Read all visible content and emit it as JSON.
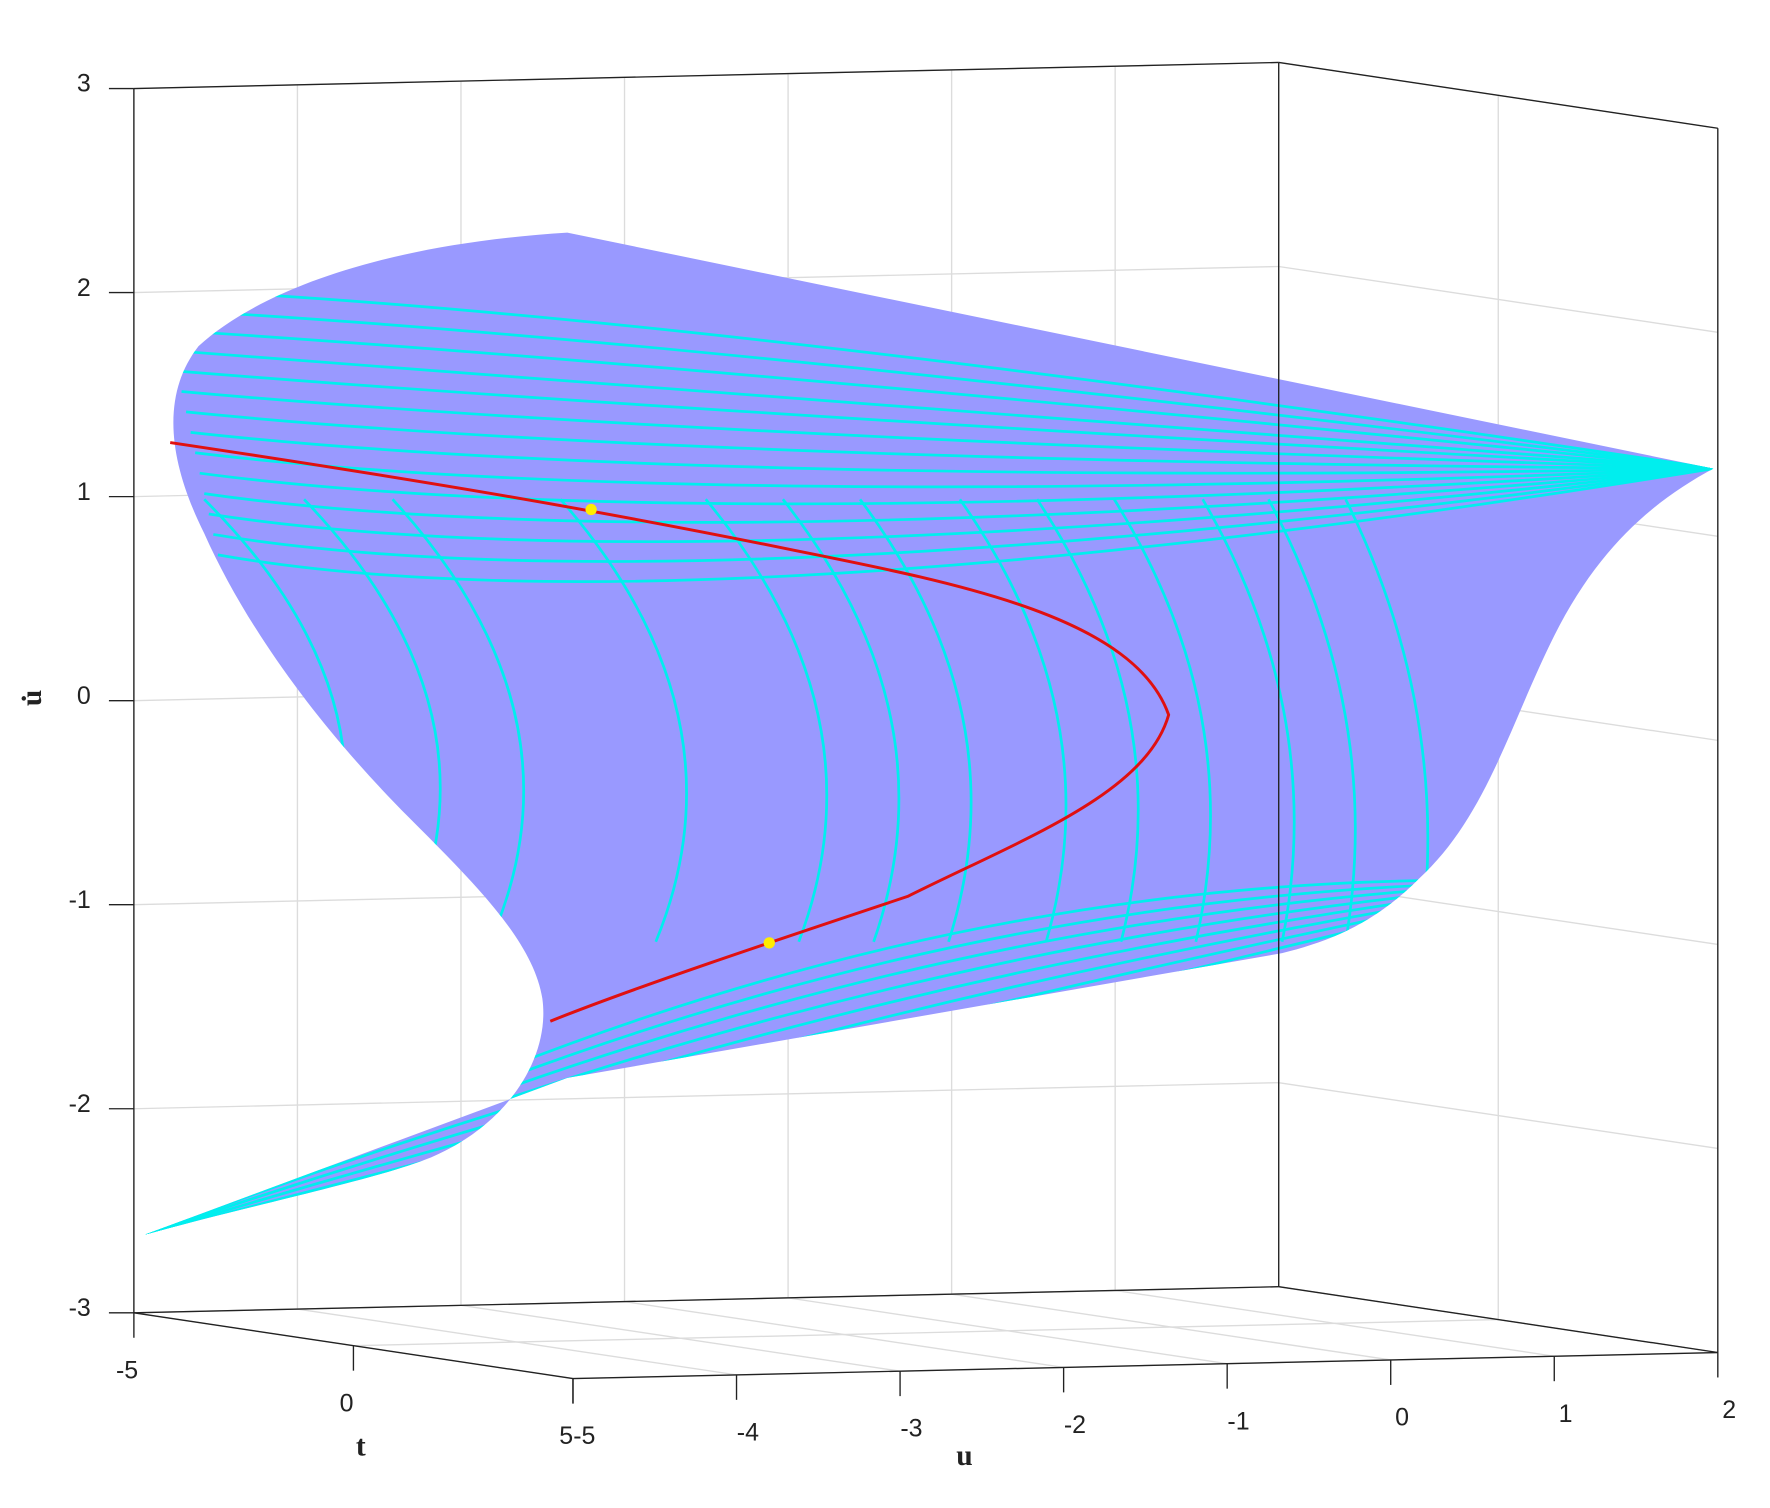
{
  "chart_data": {
    "type": "surface",
    "xlabel": "u",
    "ylabel": "t",
    "zlabel": "u̇",
    "xlim": [
      -5,
      2
    ],
    "xticks": [
      -5,
      -4,
      -3,
      -2,
      -1,
      0,
      1,
      2
    ],
    "ylim": [
      -5,
      5
    ],
    "yticks": [
      -5,
      0,
      5
    ],
    "zlim": [
      -3,
      3
    ],
    "zticks": [
      -3,
      -2,
      -1,
      0,
      1,
      2,
      3
    ],
    "grid": true,
    "surface_color": "#9999ff"
  }
}
